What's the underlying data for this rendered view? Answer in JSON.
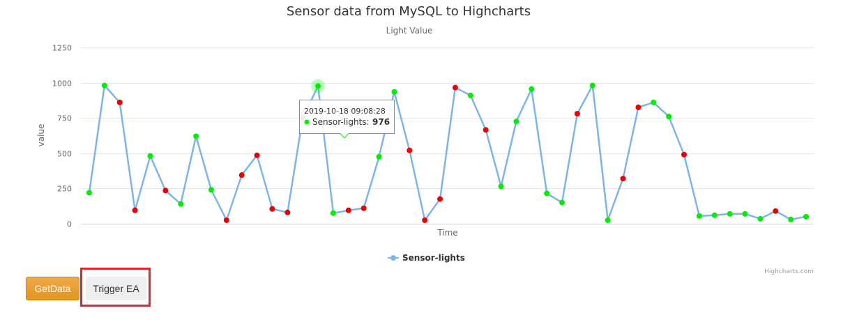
{
  "buttons": {
    "getdata_label": "GetData",
    "trigger_label": "Trigger EA"
  },
  "credits": "Highcharts.com",
  "tooltip": {
    "time": "2019-10-18 09:08:28",
    "series_label": "Sensor-lights:",
    "value": "976",
    "point_index": 15
  },
  "colors": {
    "line": "#7cb5ec",
    "above_threshold": "#00ee00",
    "below_threshold": "#ee0000",
    "highlight_box": "#e8212d",
    "getdata_button": "#eea236"
  },
  "chart_data": {
    "type": "line",
    "title": "Sensor data from MySQL to Highcharts",
    "subtitle": "Light Value",
    "xlabel": "Time",
    "ylabel": "value",
    "ylim": [
      0,
      1250
    ],
    "yticks": [
      0,
      250,
      500,
      750,
      1000,
      1250
    ],
    "grid": true,
    "legend": "bottom-center",
    "series": [
      {
        "name": "Sensor-lights",
        "values": [
          220,
          980,
          860,
          95,
          480,
          235,
          140,
          620,
          240,
          25,
          345,
          485,
          105,
          80,
          750,
          976,
          75,
          95,
          110,
          475,
          935,
          520,
          25,
          175,
          965,
          910,
          665,
          265,
          725,
          955,
          215,
          150,
          780,
          980,
          25,
          320,
          825,
          860,
          760,
          490,
          55,
          60,
          70,
          70,
          35,
          90,
          30,
          50
        ],
        "marker_colors": [
          "green",
          "green",
          "red",
          "red",
          "green",
          "red",
          "green",
          "green",
          "green",
          "red",
          "red",
          "red",
          "red",
          "red",
          "red",
          "green",
          "green",
          "red",
          "red",
          "green",
          "green",
          "red",
          "red",
          "red",
          "red",
          "green",
          "red",
          "green",
          "green",
          "green",
          "green",
          "green",
          "red",
          "green",
          "green",
          "red",
          "red",
          "green",
          "green",
          "red",
          "green",
          "green",
          "green",
          "green",
          "green",
          "red",
          "green",
          "green"
        ]
      }
    ]
  }
}
